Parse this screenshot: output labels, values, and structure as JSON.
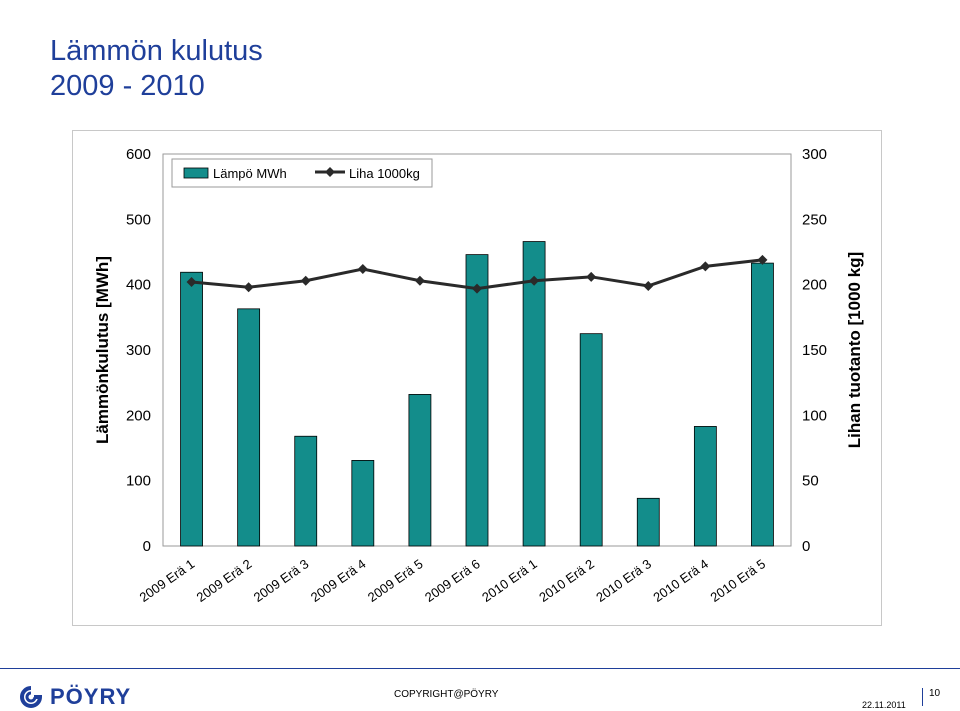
{
  "title": {
    "line1": "Lämmön kulutus",
    "line2": "2009 - 2010"
  },
  "footer": {
    "logo_text": "PÖYRY",
    "logo_icon": "poyry-logo-icon",
    "copyright": "COPYRIGHT@PÖYRY",
    "date": "22.11.2011",
    "page": "10"
  },
  "colors": {
    "bar_fill": "#138d8b",
    "line": "#2a2a2a",
    "title": "#1f3f9a"
  },
  "chart_data": {
    "type": "bar",
    "categories": [
      "2009 Erä 1",
      "2009 Erä 2",
      "2009 Erä 3",
      "2009 Erä 4",
      "2009 Erä 5",
      "2009 Erä 6",
      "2010 Erä 1",
      "2010 Erä 2",
      "2010 Erä 3",
      "2010 Erä 4",
      "2010 Erä 5"
    ],
    "series": [
      {
        "name": "Lämpö MWh",
        "type": "bar",
        "axis": "left",
        "values": [
          419,
          363,
          168,
          131,
          232,
          446,
          466,
          325,
          73,
          183,
          433
        ]
      },
      {
        "name": "Liha 1000kg",
        "type": "line",
        "axis": "right",
        "values": [
          202,
          198,
          203,
          212,
          203,
          197,
          203,
          206,
          199,
          214,
          219
        ]
      }
    ],
    "ylabel": "Lämmönkulutus [MWh]",
    "y2label": "Lihan tuotanto [1000 kg]",
    "ylim": [
      0,
      600
    ],
    "y2lim": [
      0,
      300
    ],
    "yticks": [
      0,
      100,
      200,
      300,
      400,
      500,
      600
    ],
    "y2ticks": [
      0,
      50,
      100,
      150,
      200,
      250,
      300
    ],
    "legend": "top-left",
    "grid": false
  }
}
